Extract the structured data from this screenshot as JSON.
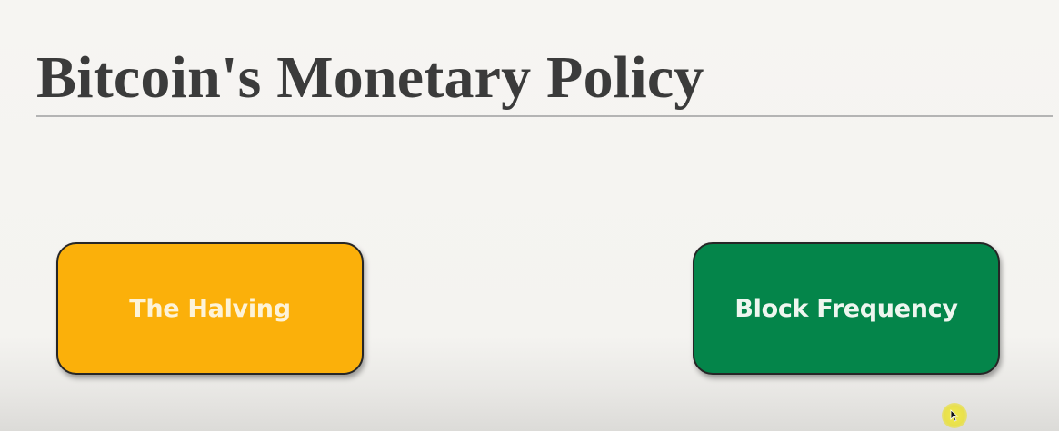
{
  "slide": {
    "title": "Bitcoin's Monetary Policy",
    "boxes": [
      {
        "label": "The Halving",
        "color": "#fbb00a"
      },
      {
        "label": "Block Frequency",
        "color": "#04854a"
      }
    ]
  },
  "colors": {
    "title_text": "#3b3b3b",
    "rule": "#b4b4b4",
    "background": "#f5f4f1",
    "cursor_highlight": "#e8e04d"
  },
  "icons": {
    "pointer": "mouse-pointer-icon"
  }
}
